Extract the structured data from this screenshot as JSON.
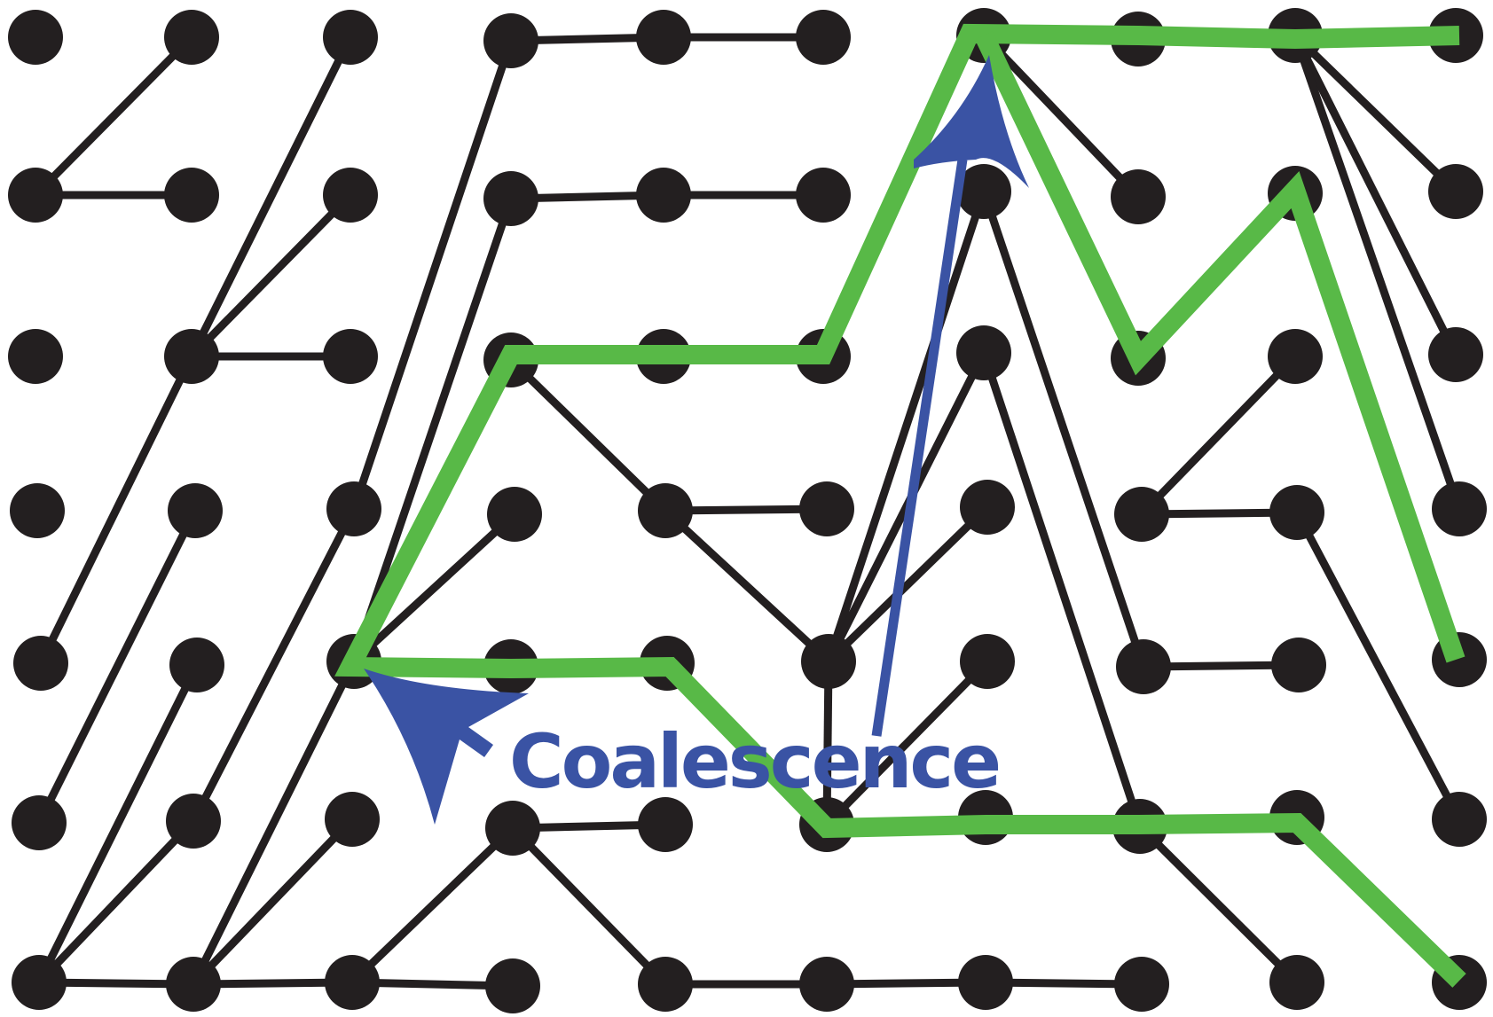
{
  "diagram": {
    "label": "Coalescence",
    "colors": {
      "node": "#231f20",
      "edge": "#231f20",
      "highlight": "#58b947",
      "accent": "#3a53a4",
      "background": "#ffffff"
    }
  }
}
